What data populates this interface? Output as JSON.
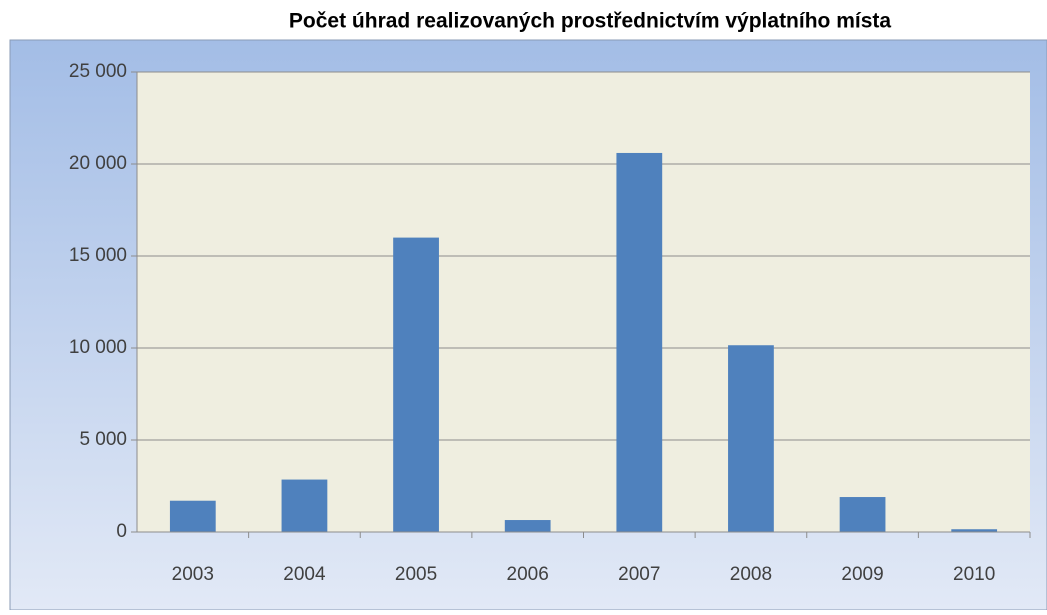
{
  "chart_data": {
    "type": "bar",
    "title": "Počet úhrad realizovaných prostřednictvím výplatního místa",
    "categories": [
      "2003",
      "2004",
      "2005",
      "2006",
      "2007",
      "2008",
      "2009",
      "2010"
    ],
    "values": [
      1700,
      2850,
      16000,
      650,
      20600,
      10150,
      1900,
      150
    ],
    "color": "#4f81bd",
    "ylim": [
      0,
      25000
    ],
    "yticks": [
      0,
      {
        "value": 5000,
        "label": "5 000"
      },
      {
        "value": 10000,
        "label": "10 000"
      },
      {
        "value": 15000,
        "label": "15 000"
      },
      {
        "value": 20000,
        "label": "20 000"
      },
      {
        "value": 25000,
        "label": "25 000"
      }
    ],
    "grid": true
  }
}
